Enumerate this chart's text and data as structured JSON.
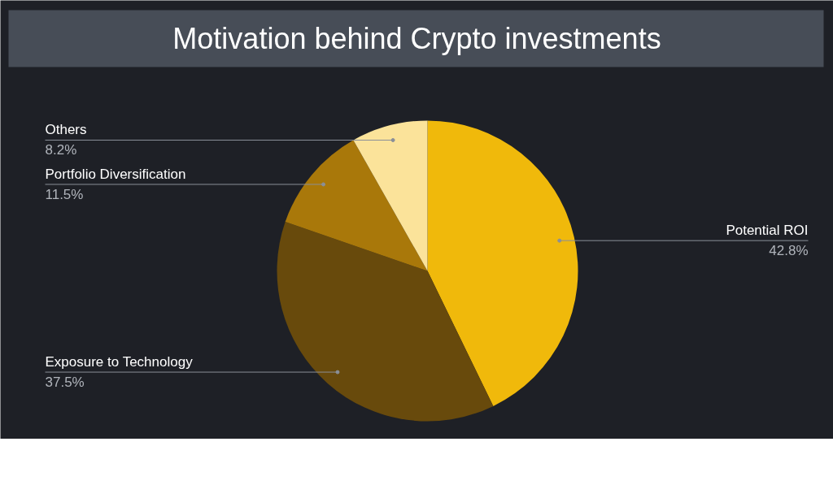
{
  "chart_data": {
    "type": "pie",
    "title": "Motivation behind Crypto investments",
    "categories": [
      "Potential ROI",
      "Exposure to Technology",
      "Portfolio Diversification",
      "Others"
    ],
    "values": [
      42.8,
      37.5,
      11.5,
      8.2
    ],
    "colors": [
      "#f0b90b",
      "#684a0c",
      "#a9780a",
      "#fbe39a"
    ],
    "value_labels": [
      "42.8%",
      "37.5%",
      "11.5%",
      "8.2%"
    ]
  }
}
